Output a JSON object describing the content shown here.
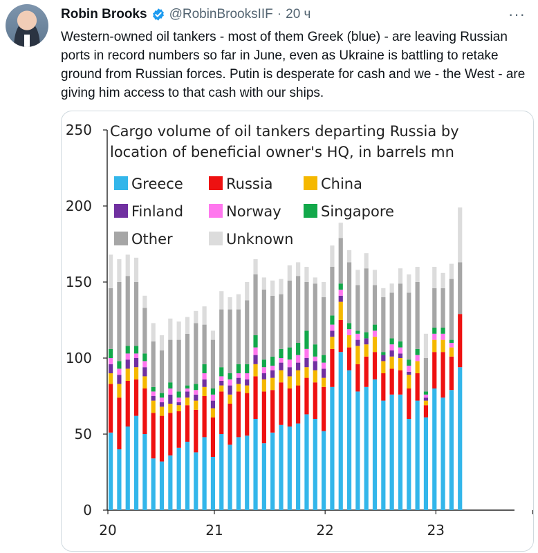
{
  "tweet": {
    "author_name": "Robin Brooks",
    "handle": "@RobinBrooksIIF",
    "separator": "·",
    "time": "20 ч",
    "more": "···",
    "text": "Western-owned oil tankers - most of them Greek (blue) - are leaving Russian ports in record numbers so far in June, even as Ukraine is battling to retake ground from Russian forces. Putin is desperate for cash and we - the West - are giving him access to that cash with our ships.",
    "verified_color": "#1d9bf0"
  },
  "chart_data": {
    "type": "bar",
    "stacked": true,
    "title_lines": [
      "Cargo volume of oil tankers departing Russia by",
      "location of beneficial owner's HQ, in barrels mn"
    ],
    "ylim": [
      0,
      250
    ],
    "yticks": [
      0,
      50,
      100,
      150,
      200,
      250
    ],
    "xtick_labels": [
      "20",
      "21",
      "22",
      "23"
    ],
    "xtick_positions": [
      0,
      12.5,
      25.5,
      38.5
    ],
    "grid": false,
    "legend_position": "top-left",
    "series": [
      {
        "name": "Greece",
        "color": "#33b6ea",
        "values": [
          51,
          40,
          55,
          62,
          50,
          34,
          32,
          36,
          41,
          45,
          38,
          48,
          35,
          50,
          43,
          48,
          49,
          60,
          44,
          51,
          56,
          55,
          57,
          63,
          60,
          52,
          81,
          104,
          92,
          78,
          81,
          86,
          72,
          76,
          76,
          60,
          72,
          61,
          80,
          74,
          79,
          94
        ]
      },
      {
        "name": "Russia",
        "color": "#ee1111",
        "values": [
          32,
          34,
          30,
          24,
          30,
          30,
          30,
          28,
          24,
          24,
          28,
          27,
          26,
          28,
          27,
          30,
          28,
          28,
          34,
          28,
          28,
          25,
          25,
          24,
          24,
          29,
          25,
          21,
          15,
          18,
          20,
          18,
          18,
          17,
          16,
          20,
          18,
          8,
          24,
          30,
          22,
          35
        ]
      },
      {
        "name": "China",
        "color": "#f5b800",
        "values": [
          7,
          9,
          8,
          8,
          8,
          8,
          6,
          6,
          4,
          5,
          6,
          6,
          6,
          4,
          6,
          5,
          5,
          8,
          8,
          8,
          8,
          8,
          10,
          7,
          8,
          6,
          8,
          12,
          8,
          12,
          8,
          10,
          8,
          8,
          8,
          9,
          8,
          3,
          8,
          8,
          6,
          0
        ]
      },
      {
        "name": "Finland",
        "color": "#7030a0",
        "values": [
          6,
          6,
          6,
          6,
          6,
          3,
          3,
          6,
          2,
          4,
          4,
          5,
          5,
          3,
          6,
          4,
          4,
          6,
          4,
          5,
          5,
          6,
          5,
          6,
          6,
          6,
          4,
          4,
          0,
          4,
          4,
          0,
          4,
          4,
          3,
          2,
          0,
          2,
          0,
          0,
          0,
          0
        ]
      },
      {
        "name": "Norway",
        "color": "#ff77ee",
        "values": [
          4,
          4,
          4,
          3,
          4,
          3,
          3,
          4,
          3,
          2,
          3,
          4,
          4,
          3,
          4,
          3,
          4,
          5,
          4,
          3,
          3,
          5,
          5,
          6,
          3,
          4,
          4,
          4,
          4,
          4,
          0,
          4,
          0,
          4,
          4,
          4,
          4,
          2,
          4,
          4,
          3,
          0
        ]
      },
      {
        "name": "Singapore",
        "color": "#12a84a",
        "values": [
          6,
          5,
          5,
          5,
          5,
          3,
          3,
          4,
          4,
          2,
          4,
          6,
          4,
          6,
          4,
          6,
          6,
          8,
          5,
          6,
          6,
          8,
          8,
          12,
          8,
          5,
          6,
          4,
          4,
          2,
          4,
          4,
          2,
          4,
          4,
          4,
          4,
          2,
          4,
          4,
          2,
          0
        ]
      },
      {
        "name": "Other",
        "color": "#a6a6a6",
        "values": [
          40,
          52,
          46,
          42,
          30,
          30,
          28,
          28,
          34,
          34,
          40,
          26,
          32,
          38,
          42,
          36,
          42,
          40,
          46,
          40,
          36,
          44,
          44,
          32,
          40,
          38,
          32,
          30,
          40,
          30,
          42,
          26,
          36,
          30,
          38,
          44,
          44,
          22,
          26,
          26,
          40,
          34
        ]
      },
      {
        "name": "Unknown",
        "color": "#dcdcdc",
        "values": [
          22,
          15,
          14,
          16,
          8,
          12,
          10,
          14,
          12,
          11,
          8,
          12,
          6,
          12,
          8,
          10,
          12,
          10,
          8,
          10,
          10,
          10,
          9,
          10,
          4,
          10,
          14,
          10,
          8,
          10,
          10,
          10,
          6,
          6,
          10,
          12,
          10,
          16,
          14,
          10,
          10,
          36
        ]
      }
    ]
  }
}
